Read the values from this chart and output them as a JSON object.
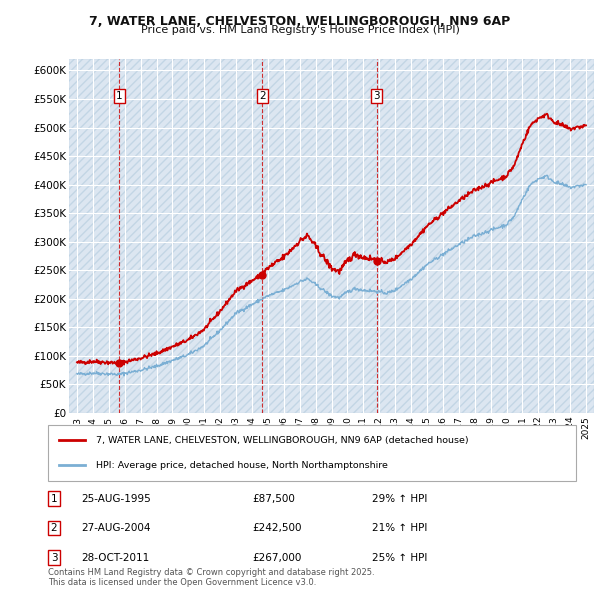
{
  "title_line1": "7, WATER LANE, CHELVESTON, WELLINGBOROUGH, NN9 6AP",
  "title_line2": "Price paid vs. HM Land Registry's House Price Index (HPI)",
  "background_color": "#ffffff",
  "plot_bg_color": "#dce6f1",
  "grid_color": "#ffffff",
  "sale_color": "#cc0000",
  "hpi_color": "#7bafd4",
  "sale_dates_num": [
    1995.65,
    2004.66,
    2011.83
  ],
  "sale_prices": [
    87500,
    242500,
    267000
  ],
  "sale_labels": [
    "1",
    "2",
    "3"
  ],
  "transaction_info": [
    {
      "label": "1",
      "date": "25-AUG-1995",
      "price": "£87,500",
      "hpi": "29% ↑ HPI"
    },
    {
      "label": "2",
      "date": "27-AUG-2004",
      "price": "£242,500",
      "hpi": "21% ↑ HPI"
    },
    {
      "label": "3",
      "date": "28-OCT-2011",
      "price": "£267,000",
      "hpi": "25% ↑ HPI"
    }
  ],
  "legend_sale": "7, WATER LANE, CHELVESTON, WELLINGBOROUGH, NN9 6AP (detached house)",
  "legend_hpi": "HPI: Average price, detached house, North Northamptonshire",
  "footnote": "Contains HM Land Registry data © Crown copyright and database right 2025.\nThis data is licensed under the Open Government Licence v3.0.",
  "ylim": [
    0,
    620000
  ],
  "yticks": [
    0,
    50000,
    100000,
    150000,
    200000,
    250000,
    300000,
    350000,
    400000,
    450000,
    500000,
    550000,
    600000
  ],
  "ytick_labels": [
    "£0",
    "£50K",
    "£100K",
    "£150K",
    "£200K",
    "£250K",
    "£300K",
    "£350K",
    "£400K",
    "£450K",
    "£500K",
    "£550K",
    "£600K"
  ],
  "xlim_start": 1992.5,
  "xlim_end": 2025.5,
  "xticks": [
    1993,
    1994,
    1995,
    1996,
    1997,
    1998,
    1999,
    2000,
    2001,
    2002,
    2003,
    2004,
    2005,
    2006,
    2007,
    2008,
    2009,
    2010,
    2011,
    2012,
    2013,
    2014,
    2015,
    2016,
    2017,
    2018,
    2019,
    2020,
    2021,
    2022,
    2023,
    2024,
    2025
  ]
}
